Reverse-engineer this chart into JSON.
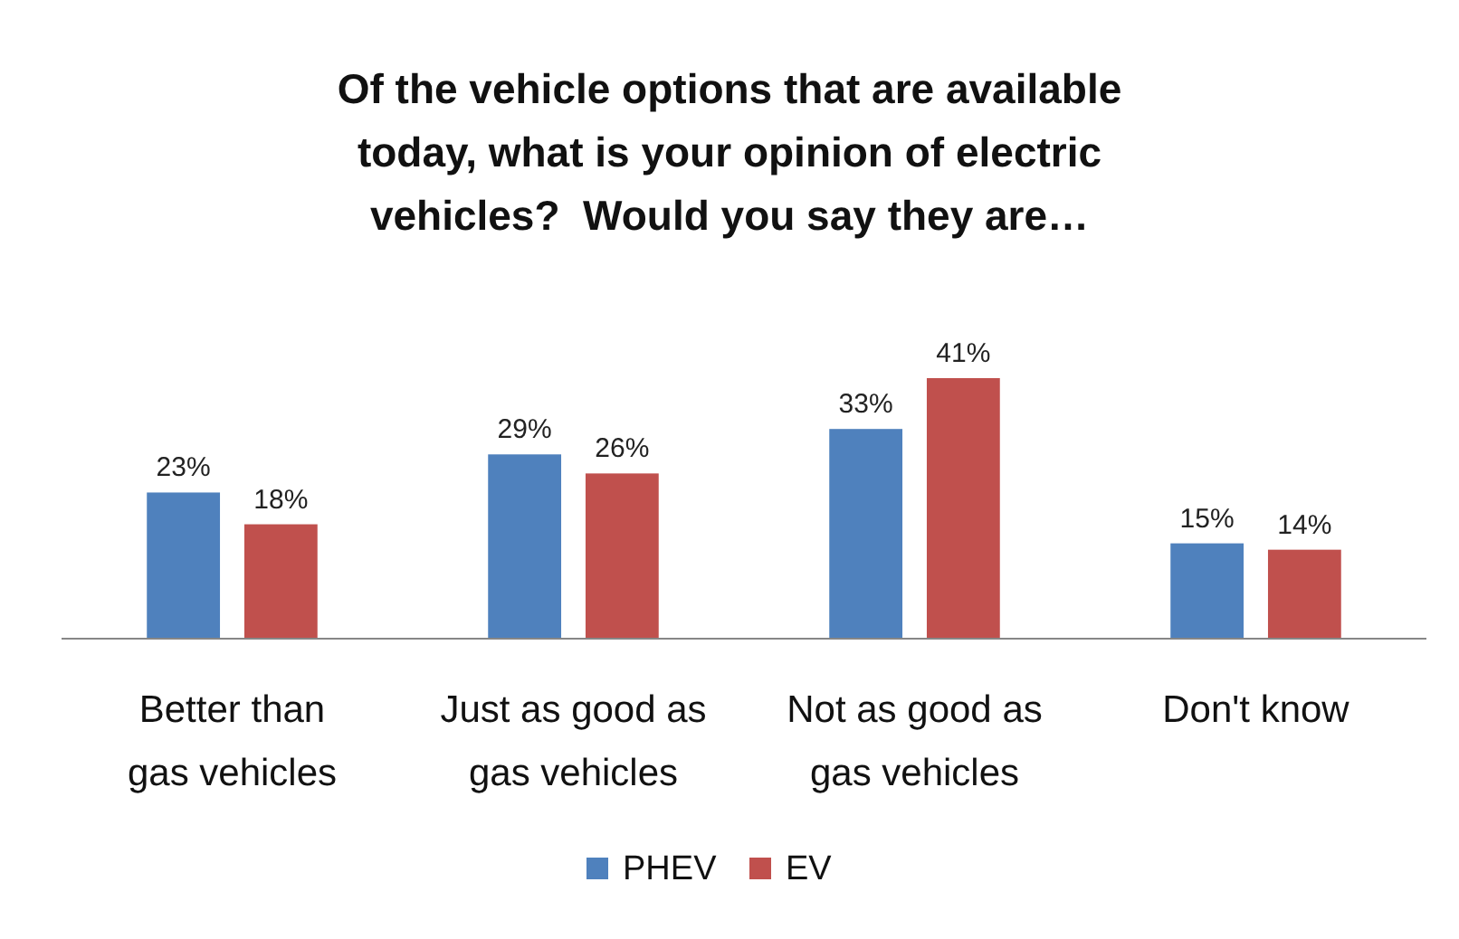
{
  "chart_data": {
    "type": "bar",
    "title": "Of the vehicle options that are available\ntoday, what is your opinion of electric\nvehicles?  Would you say they are…",
    "categories": [
      "Better than\ngas vehicles",
      "Just as good as\ngas vehicles",
      "Not as good as\ngas vehicles",
      "Don't know"
    ],
    "series": [
      {
        "name": "PHEV",
        "color": "#4f81bd",
        "values": [
          23,
          29,
          33,
          15
        ],
        "value_labels": [
          "23%",
          "29%",
          "33%",
          "15%"
        ]
      },
      {
        "name": "EV",
        "color": "#c0504d",
        "values": [
          18,
          26,
          41,
          14
        ],
        "value_labels": [
          "18%",
          "26%",
          "41%",
          "14%"
        ]
      }
    ],
    "legend": "bottom"
  }
}
